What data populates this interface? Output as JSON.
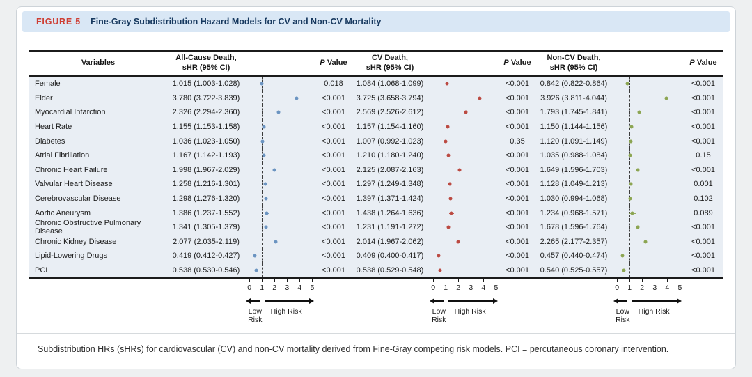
{
  "figure": {
    "label": "FIGURE 5",
    "title": "Fine-Gray Subdistribution Hazard Models for CV and Non-CV Mortality",
    "caption": "Subdistribution HRs (sHRs) for cardiovascular (CV) and non-CV mortality derived from Fine-Gray competing risk models. PCI = percutaneous coronary intervention."
  },
  "table": {
    "headers": {
      "variables": "Variables",
      "all_cause": "All-Cause Death,\nsHR (95% CI)",
      "cv": "CV Death,\nsHR (95% CI)",
      "non_cv": "Non-CV Death,\nsHR (95% CI)",
      "p_value": "P Value"
    }
  },
  "chart_data": {
    "type": "scatter",
    "subtype": "forest-plot",
    "panels": [
      {
        "key": "all_cause",
        "name": "All-Cause Death"
      },
      {
        "key": "cv",
        "name": "CV Death"
      },
      {
        "key": "non_cv",
        "name": "Non-CV Death"
      }
    ],
    "colors": {
      "all_cause": "#6b94c1",
      "cv": "#bb4a42",
      "non_cv": "#8ca552"
    },
    "axis": {
      "ticks": [
        0,
        1,
        2,
        3,
        4,
        5
      ],
      "min": 0,
      "max": 5,
      "reference_line": 1,
      "low_label": "Low Risk",
      "high_label": "High Risk"
    },
    "rows": [
      {
        "variable": "Female",
        "all_cause": {
          "shr": 1.015,
          "lo": 1.003,
          "hi": 1.028,
          "ci": "1.015 (1.003-1.028)",
          "p": "0.018"
        },
        "cv": {
          "shr": 1.084,
          "lo": 1.068,
          "hi": 1.099,
          "ci": "1.084 (1.068-1.099)",
          "p": "<0.001"
        },
        "non_cv": {
          "shr": 0.842,
          "lo": 0.822,
          "hi": 0.864,
          "ci": "0.842 (0.822-0.864)",
          "p": "<0.001"
        }
      },
      {
        "variable": "Elder",
        "all_cause": {
          "shr": 3.78,
          "lo": 3.722,
          "hi": 3.839,
          "ci": "3.780 (3.722-3.839)",
          "p": "<0.001"
        },
        "cv": {
          "shr": 3.725,
          "lo": 3.658,
          "hi": 3.794,
          "ci": "3.725 (3.658-3.794)",
          "p": "<0.001"
        },
        "non_cv": {
          "shr": 3.926,
          "lo": 3.811,
          "hi": 4.044,
          "ci": "3.926 (3.811-4.044)",
          "p": "<0.001"
        }
      },
      {
        "variable": "Myocardial Infarction",
        "all_cause": {
          "shr": 2.326,
          "lo": 2.294,
          "hi": 2.36,
          "ci": "2.326 (2.294-2.360)",
          "p": "<0.001"
        },
        "cv": {
          "shr": 2.569,
          "lo": 2.526,
          "hi": 2.612,
          "ci": "2.569 (2.526-2.612)",
          "p": "<0.001"
        },
        "non_cv": {
          "shr": 1.793,
          "lo": 1.745,
          "hi": 1.841,
          "ci": "1.793 (1.745-1.841)",
          "p": "<0.001"
        }
      },
      {
        "variable": "Heart Rate",
        "all_cause": {
          "shr": 1.155,
          "lo": 1.153,
          "hi": 1.158,
          "ci": "1.155 (1.153-1.158)",
          "p": "<0.001"
        },
        "cv": {
          "shr": 1.157,
          "lo": 1.154,
          "hi": 1.16,
          "ci": "1.157 (1.154-1.160)",
          "p": "<0.001"
        },
        "non_cv": {
          "shr": 1.15,
          "lo": 1.144,
          "hi": 1.156,
          "ci": "1.150 (1.144-1.156)",
          "p": "<0.001"
        }
      },
      {
        "variable": "Diabetes",
        "all_cause": {
          "shr": 1.036,
          "lo": 1.023,
          "hi": 1.05,
          "ci": "1.036 (1.023-1.050)",
          "p": "<0.001"
        },
        "cv": {
          "shr": 1.007,
          "lo": 0.992,
          "hi": 1.023,
          "ci": "1.007 (0.992-1.023)",
          "p": "0.35"
        },
        "non_cv": {
          "shr": 1.12,
          "lo": 1.091,
          "hi": 1.149,
          "ci": "1.120 (1.091-1.149)",
          "p": "<0.001"
        }
      },
      {
        "variable": "Atrial Fibrillation",
        "all_cause": {
          "shr": 1.167,
          "lo": 1.142,
          "hi": 1.193,
          "ci": "1.167 (1.142-1.193)",
          "p": "<0.001"
        },
        "cv": {
          "shr": 1.21,
          "lo": 1.18,
          "hi": 1.24,
          "ci": "1.210 (1.180-1.240)",
          "p": "<0.001"
        },
        "non_cv": {
          "shr": 1.035,
          "lo": 0.988,
          "hi": 1.084,
          "ci": "1.035 (0.988-1.084)",
          "p": "0.15"
        }
      },
      {
        "variable": "Chronic Heart Failure",
        "all_cause": {
          "shr": 1.998,
          "lo": 1.967,
          "hi": 2.029,
          "ci": "1.998 (1.967-2.029)",
          "p": "<0.001"
        },
        "cv": {
          "shr": 2.125,
          "lo": 2.087,
          "hi": 2.163,
          "ci": "2.125 (2.087-2.163)",
          "p": "<0.001"
        },
        "non_cv": {
          "shr": 1.649,
          "lo": 1.596,
          "hi": 1.703,
          "ci": "1.649 (1.596-1.703)",
          "p": "<0.001"
        }
      },
      {
        "variable": "Valvular Heart Disease",
        "all_cause": {
          "shr": 1.258,
          "lo": 1.216,
          "hi": 1.301,
          "ci": "1.258 (1.216-1.301)",
          "p": "<0.001"
        },
        "cv": {
          "shr": 1.297,
          "lo": 1.249,
          "hi": 1.348,
          "ci": "1.297 (1.249-1.348)",
          "p": "<0.001"
        },
        "non_cv": {
          "shr": 1.128,
          "lo": 1.049,
          "hi": 1.213,
          "ci": "1.128 (1.049-1.213)",
          "p": "0.001"
        }
      },
      {
        "variable": "Cerebrovascular Disease",
        "all_cause": {
          "shr": 1.298,
          "lo": 1.276,
          "hi": 1.32,
          "ci": "1.298 (1.276-1.320)",
          "p": "<0.001"
        },
        "cv": {
          "shr": 1.397,
          "lo": 1.371,
          "hi": 1.424,
          "ci": "1.397 (1.371-1.424)",
          "p": "<0.001"
        },
        "non_cv": {
          "shr": 1.03,
          "lo": 0.994,
          "hi": 1.068,
          "ci": "1.030 (0.994-1.068)",
          "p": "0.102"
        }
      },
      {
        "variable": "Aortic Aneurysm",
        "all_cause": {
          "shr": 1.386,
          "lo": 1.237,
          "hi": 1.552,
          "ci": "1.386 (1.237-1.552)",
          "p": "<0.001"
        },
        "cv": {
          "shr": 1.438,
          "lo": 1.264,
          "hi": 1.636,
          "ci": "1.438 (1.264-1.636)",
          "p": "<0.001"
        },
        "non_cv": {
          "shr": 1.234,
          "lo": 0.968,
          "hi": 1.571,
          "ci": "1.234 (0.968-1.571)",
          "p": "0.089"
        }
      },
      {
        "variable": "Chronic Obstructive Pulmonary Disease",
        "all_cause": {
          "shr": 1.341,
          "lo": 1.305,
          "hi": 1.379,
          "ci": "1.341 (1.305-1.379)",
          "p": "<0.001"
        },
        "cv": {
          "shr": 1.231,
          "lo": 1.191,
          "hi": 1.272,
          "ci": "1.231 (1.191-1.272)",
          "p": "<0.001"
        },
        "non_cv": {
          "shr": 1.678,
          "lo": 1.596,
          "hi": 1.764,
          "ci": "1.678 (1.596-1.764)",
          "p": "<0.001"
        }
      },
      {
        "variable": "Chronic Kidney Disease",
        "all_cause": {
          "shr": 2.077,
          "lo": 2.035,
          "hi": 2.119,
          "ci": "2.077 (2.035-2.119)",
          "p": "<0.001"
        },
        "cv": {
          "shr": 2.014,
          "lo": 1.967,
          "hi": 2.062,
          "ci": "2.014 (1.967-2.062)",
          "p": "<0.001"
        },
        "non_cv": {
          "shr": 2.265,
          "lo": 2.177,
          "hi": 2.357,
          "ci": "2.265 (2.177-2.357)",
          "p": "<0.001"
        }
      },
      {
        "variable": "Lipid-Lowering Drugs",
        "all_cause": {
          "shr": 0.419,
          "lo": 0.412,
          "hi": 0.427,
          "ci": "0.419 (0.412-0.427)",
          "p": "<0.001"
        },
        "cv": {
          "shr": 0.409,
          "lo": 0.4,
          "hi": 0.417,
          "ci": "0.409 (0.400-0.417)",
          "p": "<0.001"
        },
        "non_cv": {
          "shr": 0.457,
          "lo": 0.44,
          "hi": 0.474,
          "ci": "0.457 (0.440-0.474)",
          "p": "<0.001"
        }
      },
      {
        "variable": "PCI",
        "all_cause": {
          "shr": 0.538,
          "lo": 0.53,
          "hi": 0.546,
          "ci": "0.538 (0.530-0.546)",
          "p": "<0.001"
        },
        "cv": {
          "shr": 0.538,
          "lo": 0.529,
          "hi": 0.548,
          "ci": "0.538 (0.529-0.548)",
          "p": "<0.001"
        },
        "non_cv": {
          "shr": 0.54,
          "lo": 0.525,
          "hi": 0.557,
          "ci": "0.540 (0.525-0.557)",
          "p": "<0.001"
        }
      }
    ]
  }
}
